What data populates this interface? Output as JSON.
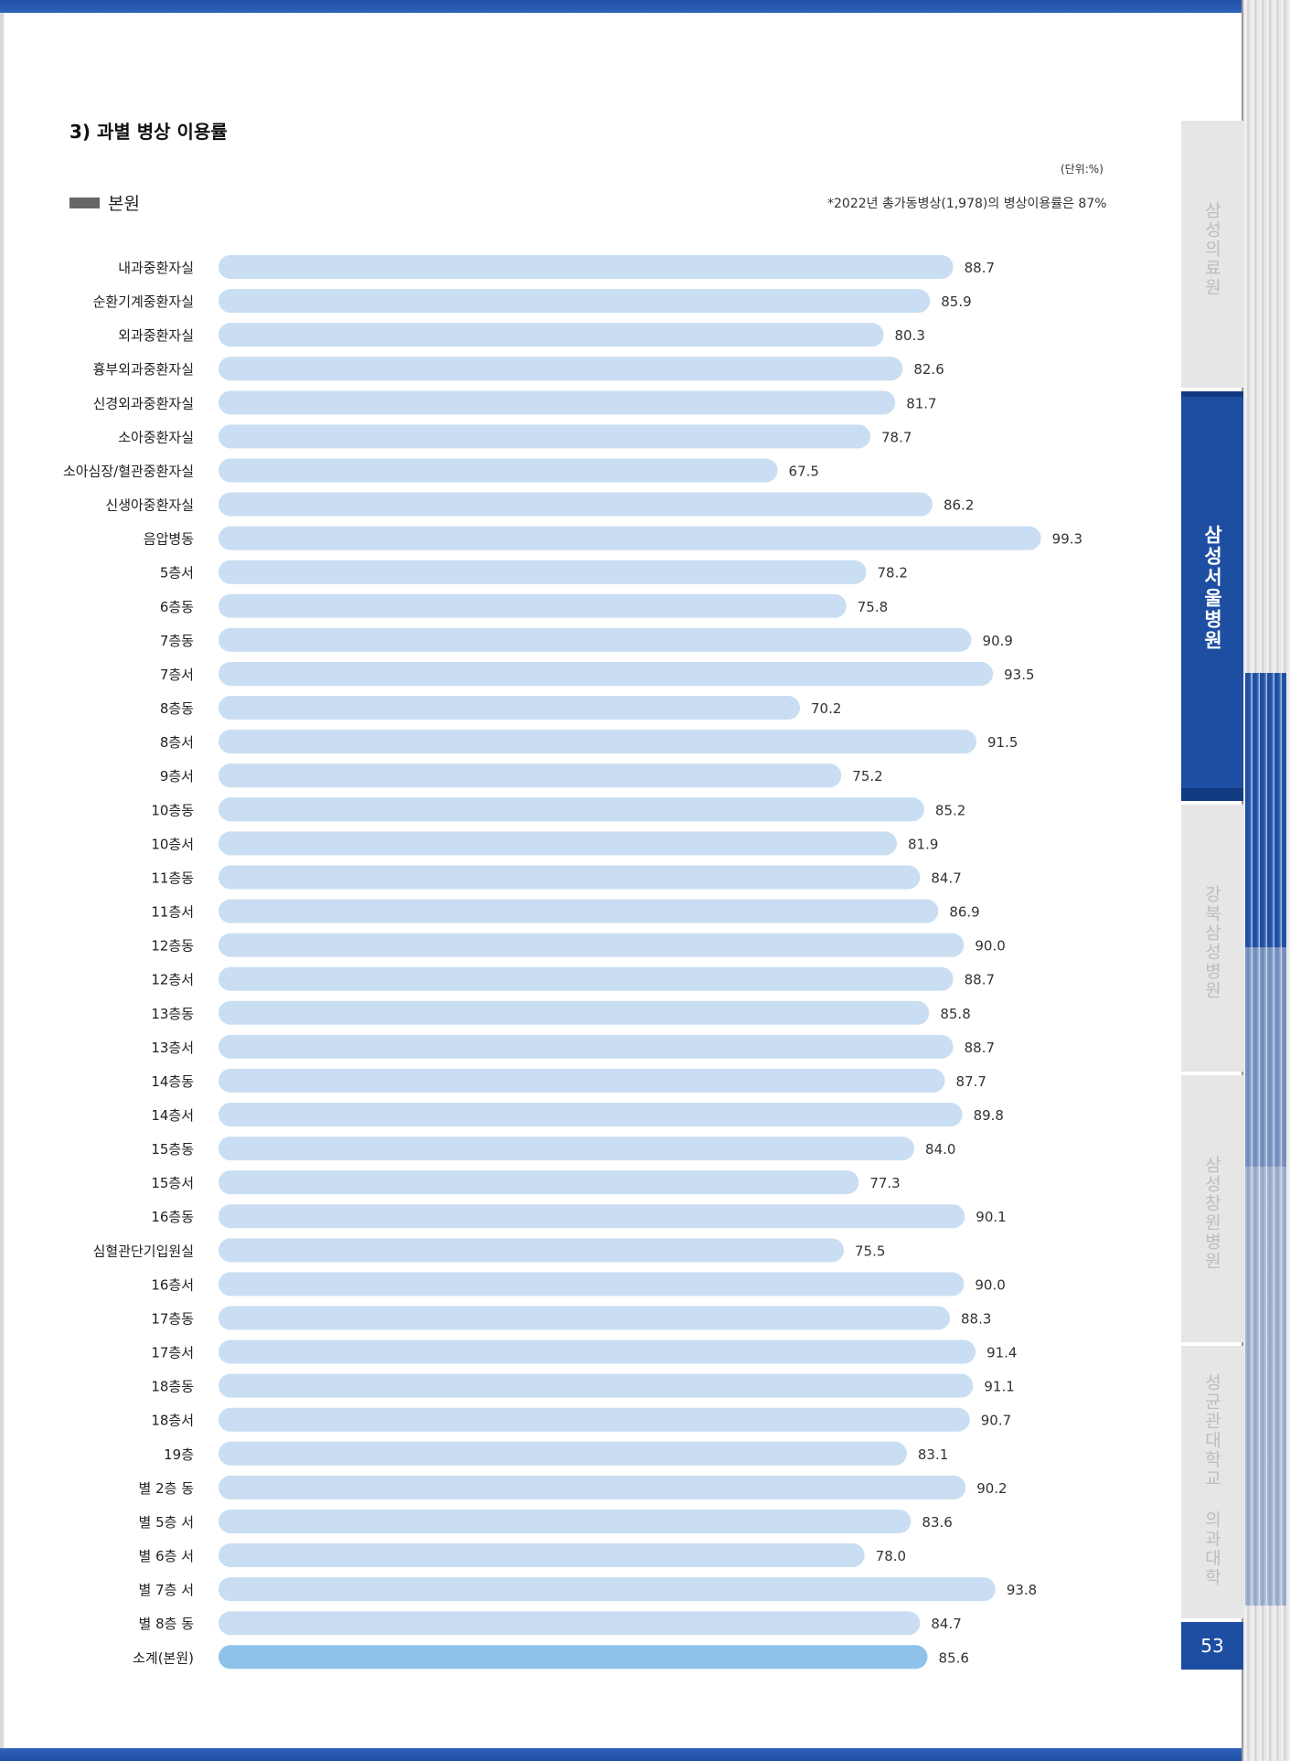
{
  "section": {
    "title": "3) 과별 병상 이용률"
  },
  "unit": "(단위:%)",
  "legend": {
    "label": "본원",
    "color": "#666666"
  },
  "footnote": "*2022년 총가동병상(1,978)의 병상이용률은 87%",
  "side_tabs": [
    {
      "label": "삼성의료원",
      "active": false
    },
    {
      "label": "삼성서울병원",
      "active": true
    },
    {
      "label": "강북삼성병원",
      "active": false
    },
    {
      "label": "삼성창원병원",
      "active": false
    },
    {
      "label": "성균관대학교 의과대학",
      "active": false
    }
  ],
  "page_number": "53",
  "colors": {
    "bar": "#c9def2",
    "total_bar": "#8fc2ea",
    "accent": "#1d4ea2"
  },
  "chart_data": {
    "type": "bar",
    "orientation": "horizontal",
    "title": "3) 과별 병상 이용률",
    "unit": "(단위:%)",
    "categories": [
      "내과중환자실",
      "순환기계중환자실",
      "외과중환자실",
      "흉부외과중환자실",
      "신경외과중환자실",
      "소아중환자실",
      "소아심장/혈관중환자실",
      "신생아중환자실",
      "음압병동",
      "5층서",
      "6층동",
      "7층동",
      "7층서",
      "8층동",
      "8층서",
      "9층서",
      "10층동",
      "10층서",
      "11층동",
      "11층서",
      "12층동",
      "12층서",
      "13층동",
      "13층서",
      "14층동",
      "14층서",
      "15층동",
      "15층서",
      "16층동",
      "심혈관단기입원실",
      "16층서",
      "17층동",
      "17층서",
      "18층동",
      "18층서",
      "19층",
      "별 2층 동",
      "별 5층 서",
      "별 6층 서",
      "별 7층 서",
      "별 8층 동",
      "소계(본원)"
    ],
    "values": [
      88.7,
      85.9,
      80.3,
      82.6,
      81.7,
      78.7,
      67.5,
      86.2,
      99.3,
      78.2,
      75.8,
      90.9,
      93.5,
      70.2,
      91.5,
      75.2,
      85.2,
      81.9,
      84.7,
      86.9,
      90.0,
      88.7,
      85.8,
      88.7,
      87.7,
      89.8,
      84.0,
      77.3,
      90.1,
      75.5,
      90.0,
      88.3,
      91.4,
      91.1,
      90.7,
      83.1,
      90.2,
      83.6,
      78.0,
      93.8,
      84.7,
      85.6
    ],
    "value_labels": [
      "88.7",
      "85.9",
      "80.3",
      "82.6",
      "81.7",
      "78.7",
      "67.5",
      "86.2",
      "99.3",
      "78.2",
      "75.8",
      "90.9",
      "93.5",
      "70.2",
      "91.5",
      "75.2",
      "85.2",
      "81.9",
      "84.7",
      "86.9",
      "90.0",
      "88.7",
      "85.8",
      "88.7",
      "87.7",
      "89.8",
      "84.0",
      "77.3",
      "90.1",
      "75.5",
      "90.0",
      "88.3",
      "91.4",
      "91.1",
      "90.7",
      "83.1",
      "90.2",
      "83.6",
      "78.0",
      "93.8",
      "84.7",
      "85.6"
    ],
    "highlight_last": true,
    "xlim": [
      0,
      105
    ],
    "grid": false
  }
}
